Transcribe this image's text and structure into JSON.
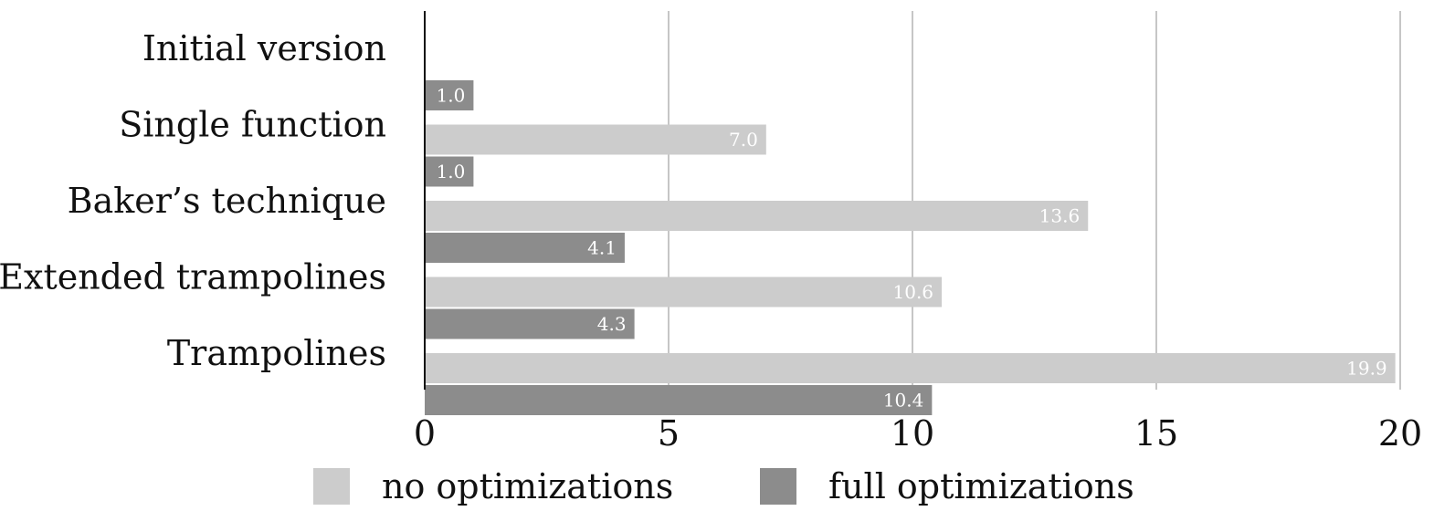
{
  "chart_data": {
    "type": "bar",
    "orientation": "horizontal",
    "categories": [
      "Initial version",
      "Single function",
      "Baker’s technique",
      "Extended trampolines",
      "Trampolines"
    ],
    "series": [
      {
        "name": "no optimizations",
        "color": "#cccccc",
        "values": [
          null,
          7.0,
          13.6,
          10.6,
          19.9
        ]
      },
      {
        "name": "full optimizations",
        "color": "#8c8c8c",
        "values": [
          1.0,
          1.0,
          4.1,
          4.3,
          10.4
        ]
      }
    ],
    "data_labels": [
      [
        "",
        "7.0",
        "13.6",
        "10.6",
        "19.9"
      ],
      [
        "1.0",
        "1.0",
        "4.1",
        "4.3",
        "10.4"
      ]
    ],
    "xticks": [
      "0",
      "5",
      "10",
      "15",
      "20"
    ],
    "xlim": [
      0,
      20
    ],
    "grid": true,
    "legend": "bottom",
    "title": "",
    "xlabel": "",
    "ylabel": ""
  }
}
